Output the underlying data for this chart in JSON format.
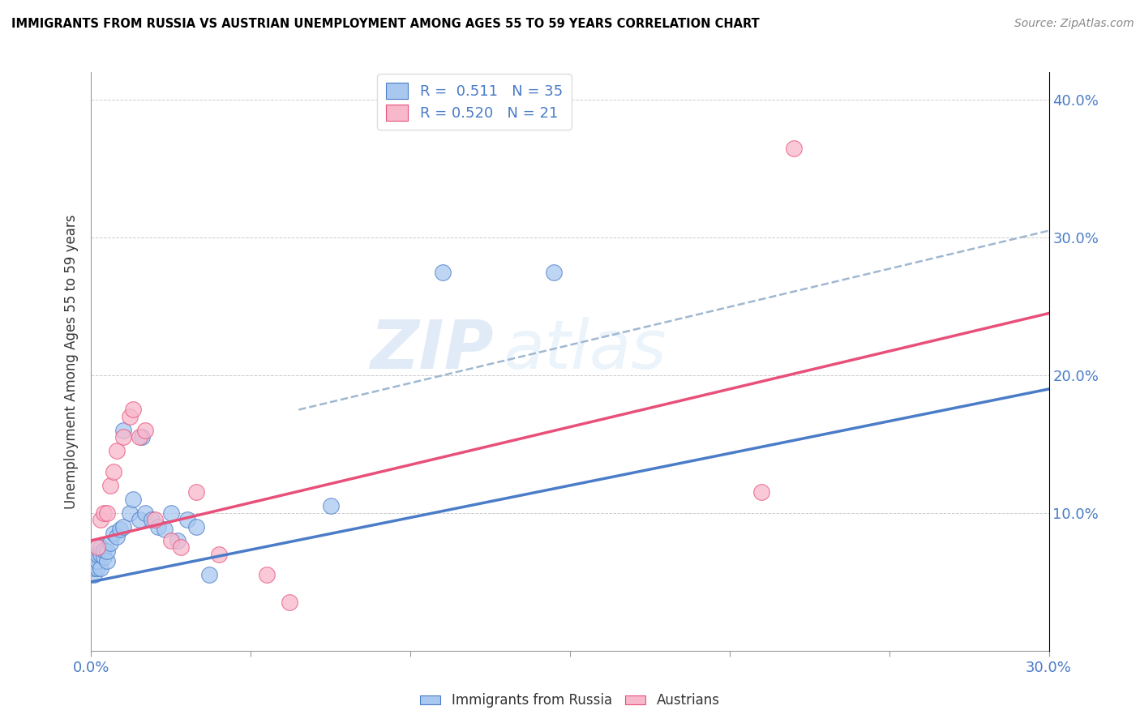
{
  "title": "IMMIGRANTS FROM RUSSIA VS AUSTRIAN UNEMPLOYMENT AMONG AGES 55 TO 59 YEARS CORRELATION CHART",
  "source": "Source: ZipAtlas.com",
  "ylabel": "Unemployment Among Ages 55 to 59 years",
  "xlim": [
    0.0,
    0.3
  ],
  "ylim": [
    0.0,
    0.42
  ],
  "xticks": [
    0.0,
    0.05,
    0.1,
    0.15,
    0.2,
    0.25,
    0.3
  ],
  "yticks": [
    0.0,
    0.1,
    0.2,
    0.3,
    0.4
  ],
  "blue_color": "#a8c8f0",
  "pink_color": "#f8b8cc",
  "blue_line_color": "#4a7cc7",
  "pink_line_color": "#e8507a",
  "dashed_line_color": "#a0b8d0",
  "legend_R_blue": "0.511",
  "legend_N_blue": "35",
  "legend_R_pink": "0.520",
  "legend_N_pink": "21",
  "watermark_zip": "ZIP",
  "watermark_atlas": "atlas",
  "blue_scatter_x": [
    0.001,
    0.001,
    0.001,
    0.002,
    0.002,
    0.002,
    0.003,
    0.003,
    0.003,
    0.004,
    0.004,
    0.005,
    0.005,
    0.006,
    0.007,
    0.008,
    0.009,
    0.01,
    0.01,
    0.012,
    0.013,
    0.015,
    0.016,
    0.017,
    0.019,
    0.021,
    0.023,
    0.025,
    0.027,
    0.03,
    0.033,
    0.037,
    0.075,
    0.11,
    0.145
  ],
  "blue_scatter_y": [
    0.055,
    0.06,
    0.065,
    0.06,
    0.065,
    0.07,
    0.06,
    0.07,
    0.075,
    0.068,
    0.073,
    0.065,
    0.072,
    0.078,
    0.085,
    0.083,
    0.088,
    0.16,
    0.09,
    0.1,
    0.11,
    0.095,
    0.155,
    0.1,
    0.095,
    0.09,
    0.088,
    0.1,
    0.08,
    0.095,
    0.09,
    0.055,
    0.105,
    0.275,
    0.275
  ],
  "pink_scatter_x": [
    0.002,
    0.003,
    0.004,
    0.005,
    0.006,
    0.007,
    0.008,
    0.01,
    0.012,
    0.013,
    0.015,
    0.017,
    0.02,
    0.025,
    0.028,
    0.033,
    0.04,
    0.055,
    0.062,
    0.21,
    0.22
  ],
  "pink_scatter_y": [
    0.075,
    0.095,
    0.1,
    0.1,
    0.12,
    0.13,
    0.145,
    0.155,
    0.17,
    0.175,
    0.155,
    0.16,
    0.095,
    0.08,
    0.075,
    0.115,
    0.07,
    0.055,
    0.035,
    0.115,
    0.365
  ],
  "blue_line_x": [
    0.0,
    0.3
  ],
  "blue_line_y": [
    0.05,
    0.19
  ],
  "pink_line_x": [
    0.0,
    0.3
  ],
  "pink_line_y": [
    0.08,
    0.245
  ],
  "dashed_line_x": [
    0.065,
    0.3
  ],
  "dashed_line_y": [
    0.175,
    0.305
  ]
}
